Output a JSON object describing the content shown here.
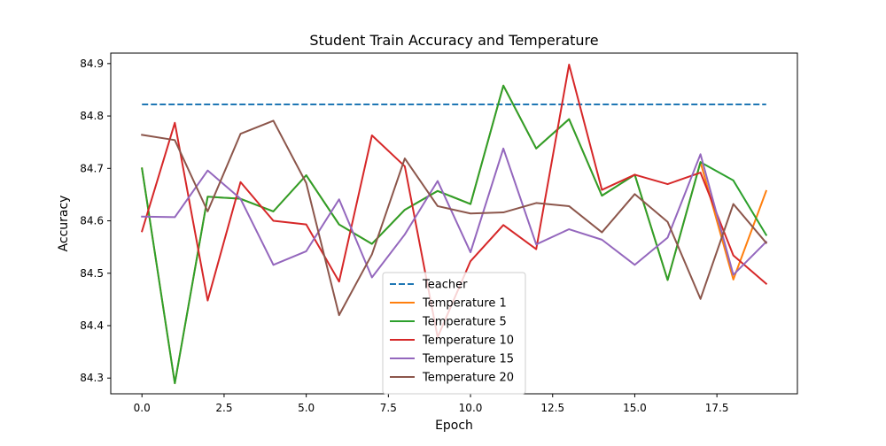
{
  "chart_data": {
    "type": "line",
    "title": "Student Train Accuracy and Temperature",
    "xlabel": "Epoch",
    "ylabel": "Accuracy",
    "xlim": [
      -0.95,
      19.95
    ],
    "ylim": [
      84.27,
      84.92
    ],
    "xticks": [
      0.0,
      2.5,
      5.0,
      7.5,
      10.0,
      12.5,
      15.0,
      17.5
    ],
    "xtick_labels": [
      "0.0",
      "2.5",
      "5.0",
      "7.5",
      "10.0",
      "12.5",
      "15.0",
      "17.5"
    ],
    "yticks": [
      84.3,
      84.4,
      84.5,
      84.6,
      84.7,
      84.8,
      84.9
    ],
    "ytick_labels": [
      "84.3",
      "84.4",
      "84.5",
      "84.6",
      "84.7",
      "84.8",
      "84.9"
    ],
    "grid": false,
    "legend_position": "bottom-center",
    "x": [
      0,
      1,
      2,
      3,
      4,
      5,
      6,
      7,
      8,
      9,
      10,
      11,
      12,
      13,
      14,
      15,
      16,
      17,
      18,
      19
    ],
    "series": [
      {
        "name": "Teacher",
        "color": "#1f77b4",
        "dashed": true,
        "values": [
          84.822,
          84.822,
          84.822,
          84.822,
          84.822,
          84.822,
          84.822,
          84.822,
          84.822,
          84.822,
          84.822,
          84.822,
          84.822,
          84.822,
          84.822,
          84.822,
          84.822,
          84.822,
          84.822,
          84.822
        ]
      },
      {
        "name": "Temperature 1",
        "color": "#ff7f0e",
        "dashed": false,
        "values": [
          84.7,
          84.29,
          84.646,
          84.642,
          84.618,
          84.687,
          84.593,
          84.556,
          84.621,
          84.657,
          84.632,
          84.858,
          84.738,
          84.794,
          84.648,
          84.688,
          84.487,
          84.712,
          84.488,
          84.657
        ]
      },
      {
        "name": "Temperature 5",
        "color": "#2ca02c",
        "dashed": false,
        "values": [
          84.7,
          84.29,
          84.646,
          84.642,
          84.618,
          84.687,
          84.593,
          84.556,
          84.621,
          84.657,
          84.632,
          84.858,
          84.738,
          84.794,
          84.648,
          84.688,
          84.487,
          84.712,
          84.677,
          84.573
        ]
      },
      {
        "name": "Temperature 10",
        "color": "#d62728",
        "dashed": false,
        "values": [
          84.58,
          84.787,
          84.448,
          84.674,
          84.6,
          84.593,
          84.484,
          84.763,
          84.704,
          84.378,
          84.523,
          84.592,
          84.546,
          84.898,
          84.659,
          84.688,
          84.67,
          84.692,
          84.534,
          84.48
        ]
      },
      {
        "name": "Temperature 15",
        "color": "#9467bd",
        "dashed": false,
        "values": [
          84.608,
          84.607,
          84.696,
          84.642,
          84.516,
          84.542,
          84.641,
          84.492,
          84.574,
          84.676,
          84.54,
          84.738,
          84.555,
          84.584,
          84.564,
          84.516,
          84.568,
          84.727,
          84.497,
          84.56
        ]
      },
      {
        "name": "Temperature 20",
        "color": "#8c564b",
        "dashed": false,
        "values": [
          84.764,
          84.754,
          84.618,
          84.766,
          84.791,
          84.672,
          84.42,
          84.536,
          84.719,
          84.628,
          84.614,
          84.616,
          84.634,
          84.628,
          84.578,
          84.651,
          84.598,
          84.451,
          84.632,
          84.558
        ]
      }
    ]
  }
}
